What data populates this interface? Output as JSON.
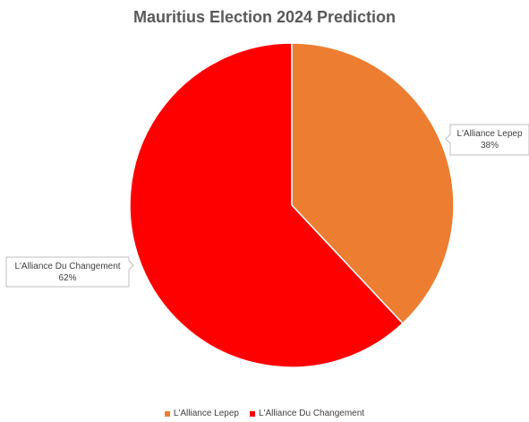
{
  "chart_data": {
    "type": "pie",
    "title": "Mauritius Election 2024 Prediction",
    "series": [
      {
        "name": "L'Alliance Lepep",
        "value": 38,
        "label": "38%",
        "color": "#ED7D31"
      },
      {
        "name": "L'Alliance Du Changement",
        "value": 62,
        "label": "62%",
        "color": "#FF0000"
      }
    ],
    "legend_position": "bottom"
  }
}
